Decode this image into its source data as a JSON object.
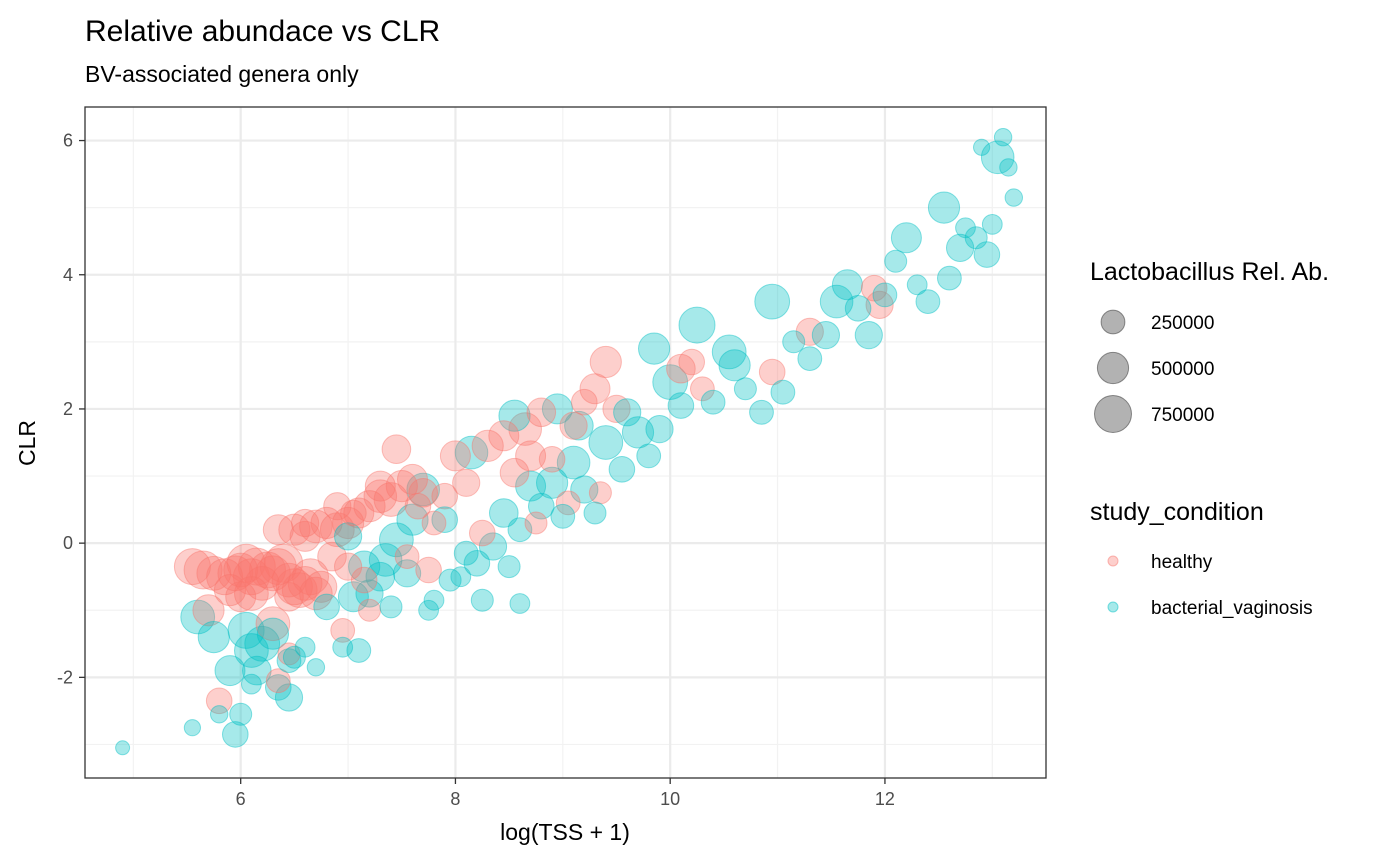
{
  "chart_data": {
    "type": "scatter",
    "title": "Relative abundace vs CLR",
    "subtitle": "BV-associated genera only",
    "xlabel": "log(TSS + 1)",
    "ylabel": "CLR",
    "xlim": [
      4.55,
      13.5
    ],
    "ylim": [
      -3.5,
      6.5
    ],
    "xticks": [
      6,
      8,
      10,
      12
    ],
    "xtick_labels": [
      "6",
      "8",
      "10",
      "12"
    ],
    "yticks": [
      -2,
      0,
      2,
      4,
      6
    ],
    "ytick_labels": [
      "-2",
      "0",
      "2",
      "4",
      "6"
    ],
    "grid": true,
    "legend_placement": "right",
    "size_legend": {
      "title": "Lactobacillus Rel. Ab.",
      "entries": [
        {
          "label": "250000",
          "value": 250000
        },
        {
          "label": "500000",
          "value": 500000
        },
        {
          "label": "750000",
          "value": 750000
        }
      ]
    },
    "color_legend": {
      "title": "study_condition",
      "entries": [
        {
          "label": "healthy",
          "color": "#F8766D"
        },
        {
          "label": "bacterial_vaginosis",
          "color": "#00BFC4"
        }
      ]
    },
    "series": [
      {
        "name": "healthy",
        "color": "#F8766D",
        "points": [
          {
            "x": 5.55,
            "y": -0.35,
            "size": 700000
          },
          {
            "x": 5.65,
            "y": -0.4,
            "size": 800000
          },
          {
            "x": 5.75,
            "y": -0.45,
            "size": 600000
          },
          {
            "x": 5.85,
            "y": -0.5,
            "size": 700000
          },
          {
            "x": 5.95,
            "y": -0.45,
            "size": 650000
          },
          {
            "x": 6.0,
            "y": -0.4,
            "size": 600000
          },
          {
            "x": 6.05,
            "y": -0.3,
            "size": 800000
          },
          {
            "x": 6.1,
            "y": -0.5,
            "size": 700000
          },
          {
            "x": 6.15,
            "y": -0.35,
            "size": 750000
          },
          {
            "x": 6.2,
            "y": -0.6,
            "size": 600000
          },
          {
            "x": 6.25,
            "y": -0.4,
            "size": 700000
          },
          {
            "x": 6.3,
            "y": -0.45,
            "size": 650000
          },
          {
            "x": 6.35,
            "y": -0.35,
            "size": 700000
          },
          {
            "x": 6.4,
            "y": -0.3,
            "size": 800000
          },
          {
            "x": 6.45,
            "y": -0.55,
            "size": 600000
          },
          {
            "x": 6.5,
            "y": -0.65,
            "size": 700000
          },
          {
            "x": 6.55,
            "y": -0.7,
            "size": 650000
          },
          {
            "x": 6.6,
            "y": -0.6,
            "size": 600000
          },
          {
            "x": 6.65,
            "y": -0.5,
            "size": 700000
          },
          {
            "x": 6.7,
            "y": -0.75,
            "size": 550000
          },
          {
            "x": 6.75,
            "y": -0.65,
            "size": 500000
          },
          {
            "x": 5.9,
            "y": -0.7,
            "size": 500000
          },
          {
            "x": 6.0,
            "y": -0.8,
            "size": 450000
          },
          {
            "x": 6.1,
            "y": -0.75,
            "size": 600000
          },
          {
            "x": 5.7,
            "y": -1.0,
            "size": 500000
          },
          {
            "x": 6.3,
            "y": -1.2,
            "size": 600000
          },
          {
            "x": 6.45,
            "y": -0.8,
            "size": 400000
          },
          {
            "x": 5.8,
            "y": -2.35,
            "size": 300000
          },
          {
            "x": 6.35,
            "y": -2.05,
            "size": 250000
          },
          {
            "x": 6.45,
            "y": -1.65,
            "size": 200000
          },
          {
            "x": 6.5,
            "y": 0.2,
            "size": 500000
          },
          {
            "x": 6.6,
            "y": 0.1,
            "size": 450000
          },
          {
            "x": 6.7,
            "y": 0.25,
            "size": 550000
          },
          {
            "x": 6.8,
            "y": 0.3,
            "size": 500000
          },
          {
            "x": 6.9,
            "y": 0.2,
            "size": 600000
          },
          {
            "x": 7.0,
            "y": 0.3,
            "size": 500000
          },
          {
            "x": 7.1,
            "y": 0.45,
            "size": 450000
          },
          {
            "x": 7.2,
            "y": 0.55,
            "size": 500000
          },
          {
            "x": 7.3,
            "y": 0.7,
            "size": 550000
          },
          {
            "x": 7.4,
            "y": 0.65,
            "size": 600000
          },
          {
            "x": 7.5,
            "y": 0.85,
            "size": 500000
          },
          {
            "x": 7.6,
            "y": 0.95,
            "size": 450000
          },
          {
            "x": 7.7,
            "y": 0.75,
            "size": 400000
          },
          {
            "x": 6.9,
            "y": 0.55,
            "size": 350000
          },
          {
            "x": 7.05,
            "y": 0.45,
            "size": 300000
          },
          {
            "x": 6.35,
            "y": 0.2,
            "size": 450000
          },
          {
            "x": 6.6,
            "y": 0.3,
            "size": 350000
          },
          {
            "x": 6.85,
            "y": -0.2,
            "size": 400000
          },
          {
            "x": 7.0,
            "y": -0.35,
            "size": 350000
          },
          {
            "x": 7.15,
            "y": -0.55,
            "size": 300000
          },
          {
            "x": 6.95,
            "y": -1.3,
            "size": 250000
          },
          {
            "x": 7.2,
            "y": -1.0,
            "size": 200000
          },
          {
            "x": 7.3,
            "y": 0.85,
            "size": 450000
          },
          {
            "x": 7.45,
            "y": 1.4,
            "size": 400000
          },
          {
            "x": 7.65,
            "y": 0.55,
            "size": 300000
          },
          {
            "x": 7.8,
            "y": 0.3,
            "size": 250000
          },
          {
            "x": 7.9,
            "y": 0.7,
            "size": 300000
          },
          {
            "x": 8.0,
            "y": 1.3,
            "size": 450000
          },
          {
            "x": 8.1,
            "y": 0.9,
            "size": 350000
          },
          {
            "x": 8.3,
            "y": 1.45,
            "size": 500000
          },
          {
            "x": 8.45,
            "y": 1.6,
            "size": 450000
          },
          {
            "x": 8.55,
            "y": 1.05,
            "size": 400000
          },
          {
            "x": 8.65,
            "y": 1.7,
            "size": 550000
          },
          {
            "x": 8.7,
            "y": 1.3,
            "size": 450000
          },
          {
            "x": 8.8,
            "y": 1.95,
            "size": 400000
          },
          {
            "x": 8.75,
            "y": 0.3,
            "size": 200000
          },
          {
            "x": 8.9,
            "y": 1.25,
            "size": 300000
          },
          {
            "x": 9.05,
            "y": 0.6,
            "size": 250000
          },
          {
            "x": 9.1,
            "y": 1.75,
            "size": 350000
          },
          {
            "x": 9.3,
            "y": 2.3,
            "size": 450000
          },
          {
            "x": 9.4,
            "y": 2.7,
            "size": 500000
          },
          {
            "x": 9.5,
            "y": 2.0,
            "size": 350000
          },
          {
            "x": 9.2,
            "y": 2.1,
            "size": 300000
          },
          {
            "x": 9.35,
            "y": 0.75,
            "size": 200000
          },
          {
            "x": 8.25,
            "y": 0.15,
            "size": 300000
          },
          {
            "x": 10.1,
            "y": 2.6,
            "size": 400000
          },
          {
            "x": 10.2,
            "y": 2.7,
            "size": 300000
          },
          {
            "x": 10.3,
            "y": 2.3,
            "size": 250000
          },
          {
            "x": 10.95,
            "y": 2.55,
            "size": 300000
          },
          {
            "x": 11.3,
            "y": 3.15,
            "size": 350000
          },
          {
            "x": 11.9,
            "y": 3.8,
            "size": 300000
          },
          {
            "x": 11.95,
            "y": 3.55,
            "size": 350000
          },
          {
            "x": 7.75,
            "y": -0.4,
            "size": 300000
          },
          {
            "x": 7.55,
            "y": -0.2,
            "size": 250000
          }
        ]
      },
      {
        "name": "bacterial_vaginosis",
        "color": "#00BFC4",
        "points": [
          {
            "x": 4.9,
            "y": -3.05,
            "size": 50000
          },
          {
            "x": 5.55,
            "y": -2.75,
            "size": 80000
          },
          {
            "x": 5.6,
            "y": -1.1,
            "size": 600000
          },
          {
            "x": 5.75,
            "y": -1.4,
            "size": 500000
          },
          {
            "x": 5.9,
            "y": -1.9,
            "size": 450000
          },
          {
            "x": 5.95,
            "y": -2.85,
            "size": 300000
          },
          {
            "x": 6.0,
            "y": -2.55,
            "size": 200000
          },
          {
            "x": 6.05,
            "y": -1.3,
            "size": 700000
          },
          {
            "x": 6.1,
            "y": -1.6,
            "size": 600000
          },
          {
            "x": 6.15,
            "y": -1.9,
            "size": 400000
          },
          {
            "x": 6.2,
            "y": -1.5,
            "size": 650000
          },
          {
            "x": 6.3,
            "y": -1.35,
            "size": 500000
          },
          {
            "x": 6.35,
            "y": -2.15,
            "size": 300000
          },
          {
            "x": 6.45,
            "y": -1.75,
            "size": 250000
          },
          {
            "x": 6.45,
            "y": -2.3,
            "size": 350000
          },
          {
            "x": 6.5,
            "y": -1.7,
            "size": 200000
          },
          {
            "x": 5.8,
            "y": -2.55,
            "size": 100000
          },
          {
            "x": 6.1,
            "y": -2.1,
            "size": 150000
          },
          {
            "x": 6.6,
            "y": -1.55,
            "size": 150000
          },
          {
            "x": 6.7,
            "y": -1.85,
            "size": 100000
          },
          {
            "x": 6.95,
            "y": -1.55,
            "size": 150000
          },
          {
            "x": 7.05,
            "y": -0.8,
            "size": 450000
          },
          {
            "x": 7.1,
            "y": -1.6,
            "size": 250000
          },
          {
            "x": 6.8,
            "y": -0.95,
            "size": 300000
          },
          {
            "x": 7.15,
            "y": -0.35,
            "size": 500000
          },
          {
            "x": 7.2,
            "y": -0.75,
            "size": 350000
          },
          {
            "x": 7.3,
            "y": -0.5,
            "size": 400000
          },
          {
            "x": 7.35,
            "y": -0.25,
            "size": 550000
          },
          {
            "x": 7.45,
            "y": 0.05,
            "size": 600000
          },
          {
            "x": 7.55,
            "y": -0.45,
            "size": 350000
          },
          {
            "x": 7.6,
            "y": 0.35,
            "size": 500000
          },
          {
            "x": 7.7,
            "y": 0.8,
            "size": 550000
          },
          {
            "x": 7.8,
            "y": -0.85,
            "size": 150000
          },
          {
            "x": 7.95,
            "y": -0.55,
            "size": 200000
          },
          {
            "x": 8.05,
            "y": -0.5,
            "size": 150000
          },
          {
            "x": 8.1,
            "y": -0.15,
            "size": 250000
          },
          {
            "x": 8.2,
            "y": -0.3,
            "size": 300000
          },
          {
            "x": 8.35,
            "y": -0.05,
            "size": 350000
          },
          {
            "x": 8.45,
            "y": 0.45,
            "size": 400000
          },
          {
            "x": 8.5,
            "y": -0.35,
            "size": 200000
          },
          {
            "x": 8.6,
            "y": 0.2,
            "size": 250000
          },
          {
            "x": 8.7,
            "y": 0.85,
            "size": 450000
          },
          {
            "x": 8.8,
            "y": 0.55,
            "size": 300000
          },
          {
            "x": 8.9,
            "y": 0.9,
            "size": 500000
          },
          {
            "x": 9.0,
            "y": 0.4,
            "size": 250000
          },
          {
            "x": 9.1,
            "y": 1.2,
            "size": 550000
          },
          {
            "x": 9.2,
            "y": 0.8,
            "size": 350000
          },
          {
            "x": 9.3,
            "y": 0.45,
            "size": 200000
          },
          {
            "x": 9.4,
            "y": 1.5,
            "size": 600000
          },
          {
            "x": 9.55,
            "y": 1.1,
            "size": 300000
          },
          {
            "x": 9.7,
            "y": 1.65,
            "size": 500000
          },
          {
            "x": 9.8,
            "y": 1.3,
            "size": 250000
          },
          {
            "x": 9.9,
            "y": 1.7,
            "size": 350000
          },
          {
            "x": 10.0,
            "y": 2.4,
            "size": 650000
          },
          {
            "x": 10.1,
            "y": 2.05,
            "size": 300000
          },
          {
            "x": 10.25,
            "y": 3.25,
            "size": 700000
          },
          {
            "x": 10.4,
            "y": 2.1,
            "size": 250000
          },
          {
            "x": 10.55,
            "y": 2.85,
            "size": 600000
          },
          {
            "x": 10.6,
            "y": 2.65,
            "size": 500000
          },
          {
            "x": 10.7,
            "y": 2.3,
            "size": 200000
          },
          {
            "x": 10.85,
            "y": 1.95,
            "size": 250000
          },
          {
            "x": 10.95,
            "y": 3.6,
            "size": 650000
          },
          {
            "x": 11.05,
            "y": 2.25,
            "size": 250000
          },
          {
            "x": 11.15,
            "y": 3.0,
            "size": 200000
          },
          {
            "x": 11.3,
            "y": 2.75,
            "size": 250000
          },
          {
            "x": 11.45,
            "y": 3.1,
            "size": 350000
          },
          {
            "x": 11.55,
            "y": 3.6,
            "size": 550000
          },
          {
            "x": 11.65,
            "y": 3.85,
            "size": 450000
          },
          {
            "x": 11.75,
            "y": 3.5,
            "size": 300000
          },
          {
            "x": 11.85,
            "y": 3.1,
            "size": 350000
          },
          {
            "x": 12.0,
            "y": 3.7,
            "size": 250000
          },
          {
            "x": 12.1,
            "y": 4.2,
            "size": 200000
          },
          {
            "x": 12.2,
            "y": 4.55,
            "size": 450000
          },
          {
            "x": 12.3,
            "y": 3.85,
            "size": 150000
          },
          {
            "x": 12.4,
            "y": 3.6,
            "size": 250000
          },
          {
            "x": 12.55,
            "y": 5.0,
            "size": 500000
          },
          {
            "x": 12.6,
            "y": 3.95,
            "size": 250000
          },
          {
            "x": 12.7,
            "y": 4.4,
            "size": 350000
          },
          {
            "x": 12.75,
            "y": 4.7,
            "size": 150000
          },
          {
            "x": 12.85,
            "y": 4.55,
            "size": 200000
          },
          {
            "x": 12.95,
            "y": 4.3,
            "size": 300000
          },
          {
            "x": 13.05,
            "y": 5.75,
            "size": 550000
          },
          {
            "x": 13.1,
            "y": 6.05,
            "size": 100000
          },
          {
            "x": 13.15,
            "y": 5.6,
            "size": 100000
          },
          {
            "x": 13.2,
            "y": 5.15,
            "size": 100000
          },
          {
            "x": 13.0,
            "y": 4.75,
            "size": 150000
          },
          {
            "x": 12.9,
            "y": 5.9,
            "size": 80000
          },
          {
            "x": 8.15,
            "y": 1.35,
            "size": 550000
          },
          {
            "x": 8.55,
            "y": 1.9,
            "size": 500000
          },
          {
            "x": 8.95,
            "y": 2.0,
            "size": 450000
          },
          {
            "x": 9.15,
            "y": 1.75,
            "size": 400000
          },
          {
            "x": 9.6,
            "y": 1.95,
            "size": 350000
          },
          {
            "x": 9.85,
            "y": 2.9,
            "size": 500000
          },
          {
            "x": 7.9,
            "y": 0.35,
            "size": 300000
          },
          {
            "x": 7.75,
            "y": -1.0,
            "size": 150000
          },
          {
            "x": 8.25,
            "y": -0.85,
            "size": 200000
          },
          {
            "x": 8.6,
            "y": -0.9,
            "size": 150000
          },
          {
            "x": 7.4,
            "y": -0.95,
            "size": 200000
          },
          {
            "x": 7.0,
            "y": 0.1,
            "size": 350000
          }
        ]
      }
    ]
  }
}
